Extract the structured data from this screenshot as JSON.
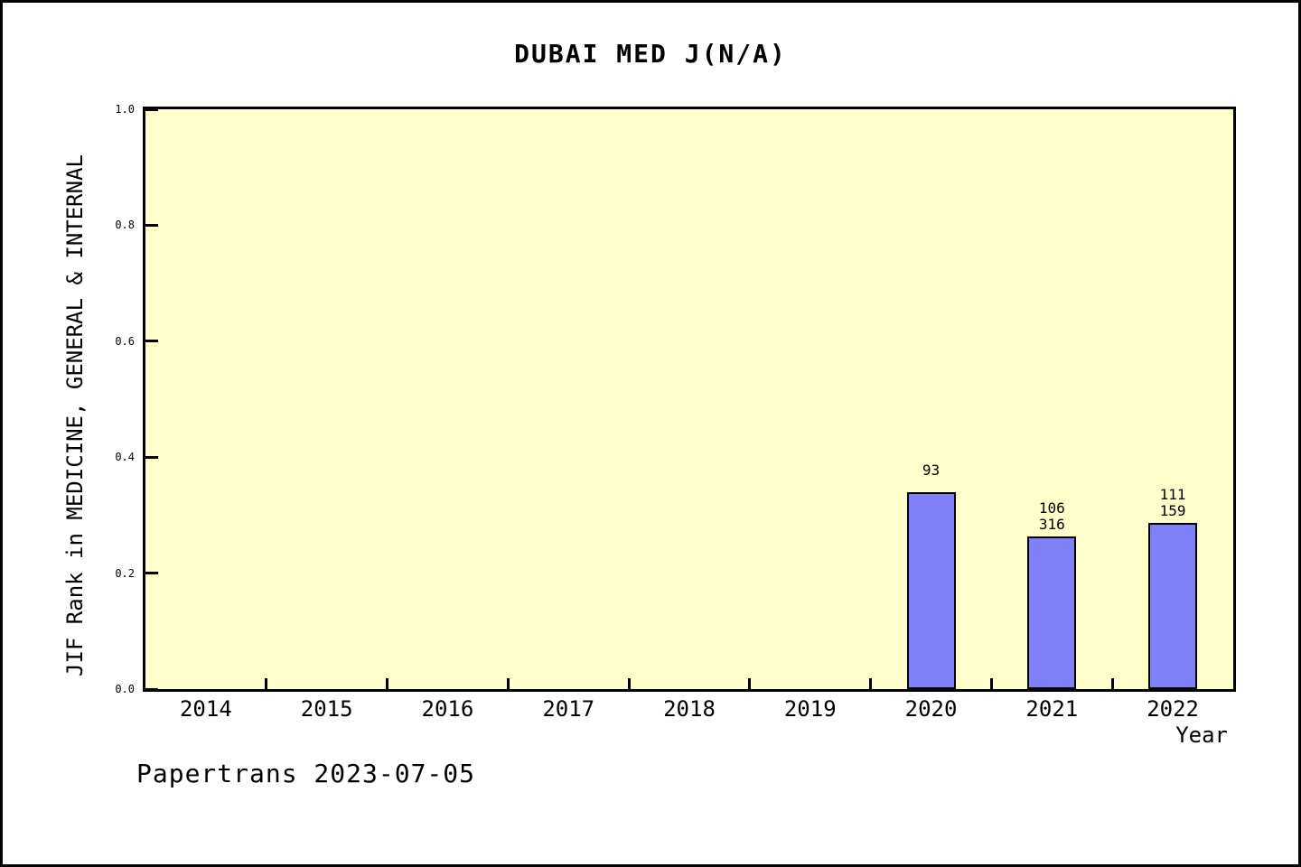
{
  "chart_data": {
    "type": "bar",
    "title": "DUBAI MED J(N/A)",
    "xlabel": "Year",
    "ylabel": "JIF Rank in MEDICINE, GENERAL & INTERNAL",
    "categories": [
      "2014",
      "2015",
      "2016",
      "2017",
      "2018",
      "2019",
      "2020",
      "2021",
      "2022"
    ],
    "values": [
      null,
      null,
      null,
      null,
      null,
      null,
      0.34,
      0.263,
      0.287
    ],
    "bar_labels": [
      [],
      [],
      [],
      [],
      [],
      [],
      [
        "93"
      ],
      [
        "106",
        "316"
      ],
      [
        "111",
        "159"
      ]
    ],
    "ylim": [
      0.0,
      1.0
    ],
    "yticks": [
      "0.0",
      "0.2",
      "0.4",
      "0.6",
      "0.8",
      "1.0"
    ],
    "grid": false,
    "legend_position": "none",
    "colors": {
      "bar_fill": "#8080f8",
      "bar_border": "#000000",
      "plot_background": "#ffffcc",
      "frame": "#000000",
      "page_background": "#ffffff",
      "text": "#000000"
    }
  },
  "footer": {
    "note": "Papertrans 2023-07-05"
  }
}
